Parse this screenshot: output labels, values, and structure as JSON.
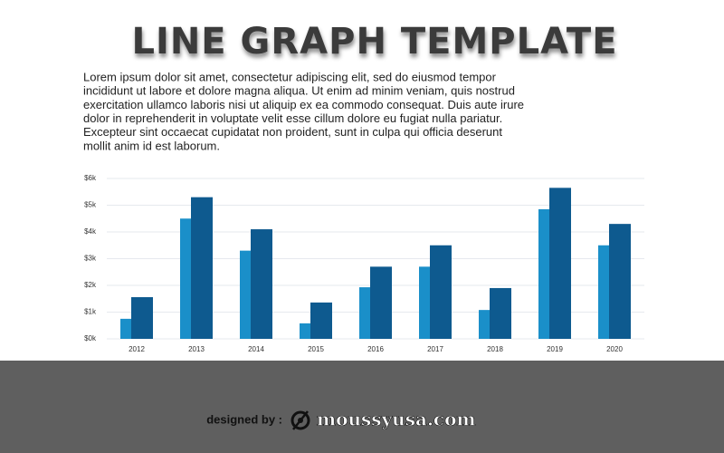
{
  "header": {
    "title": "LINE GRAPH TEMPLATE"
  },
  "body": {
    "paragraph_lines": [
      "Lorem ipsum dolor sit amet, consectetur adipiscing elit, sed do eiusmod tempor",
      "incididunt ut labore et dolore magna aliqua. Ut enim ad minim veniam, quis nostrud",
      "exercitation ullamco laboris nisi ut aliquip ex ea commodo consequat. Duis aute irure",
      "dolor in reprehenderit in voluptate velit esse cillum dolore eu fugiat nulla pariatur.",
      "Excepteur sint occaecat cupidatat non proident, sunt in culpa qui officia deserunt",
      "mollit anim id est laborum."
    ]
  },
  "chart_data": {
    "type": "bar",
    "categories": [
      "2012",
      "2013",
      "2014",
      "2015",
      "2016",
      "2017",
      "2018",
      "2019",
      "2020"
    ],
    "series": [
      {
        "color": "#1a8fc9",
        "values": [
          0.75,
          4.5,
          3.3,
          0.58,
          1.93,
          2.7,
          1.08,
          4.85,
          3.5
        ]
      },
      {
        "color": "#0e5a8f",
        "values": [
          1.56,
          5.3,
          4.1,
          1.36,
          2.7,
          3.5,
          1.9,
          5.65,
          4.3
        ]
      }
    ],
    "ylim": [
      0,
      6
    ],
    "yticks": [
      {
        "value": 0,
        "label": "$0k"
      },
      {
        "value": 1,
        "label": "$1k"
      },
      {
        "value": 2,
        "label": "$2k"
      },
      {
        "value": 3,
        "label": "$3k"
      },
      {
        "value": 4,
        "label": "$4k"
      },
      {
        "value": 5,
        "label": "$5k"
      },
      {
        "value": 6,
        "label": "$6k"
      }
    ],
    "grid": true
  },
  "footer": {
    "designed_by": "designed by :",
    "brand": "moussyusa.com"
  }
}
